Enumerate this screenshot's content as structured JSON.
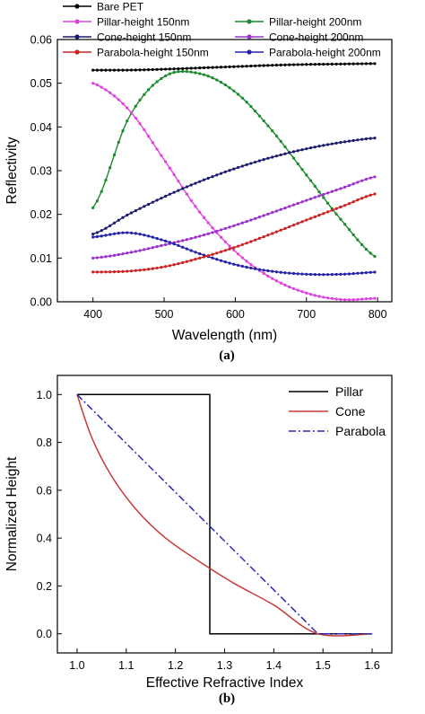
{
  "chart_data": [
    {
      "type": "line",
      "panel_label": "(a)",
      "xlabel": "Wavelength (nm)",
      "ylabel": "Reflectivity",
      "xlim": [
        350,
        820
      ],
      "ylim": [
        0.0,
        0.06
      ],
      "xticks": [
        400,
        500,
        600,
        700,
        800
      ],
      "xtick_labels": [
        "400",
        "500",
        "600",
        "700",
        "800"
      ],
      "yticks": [
        0.0,
        0.01,
        0.02,
        0.03,
        0.04,
        0.05,
        0.06
      ],
      "ytick_labels": [
        "0.00",
        "0.01",
        "0.02",
        "0.03",
        "0.04",
        "0.05",
        "0.06"
      ],
      "grid": false,
      "legend_position": "top, outside plot, two columns",
      "x": [
        400,
        450,
        500,
        550,
        600,
        650,
        700,
        750,
        800
      ],
      "series": [
        {
          "name": "Bare PET",
          "color": "#000000",
          "marker": "circle",
          "values": [
            0.053,
            0.053,
            0.0532,
            0.0535,
            0.0538,
            0.0541,
            0.0543,
            0.0544,
            0.0545
          ]
        },
        {
          "name": "Pillar-height 200nm",
          "color": "#1a8a2a",
          "marker": "circle",
          "values": [
            0.0215,
            0.042,
            0.0515,
            0.0522,
            0.048,
            0.0395,
            0.029,
            0.0185,
            0.01
          ]
        },
        {
          "name": "Pillar-height 150nm",
          "color": "#e040e0",
          "marker": "circle",
          "values": [
            0.05,
            0.044,
            0.0325,
            0.0205,
            0.0115,
            0.0055,
            0.002,
            0.0005,
            0.0008
          ]
        },
        {
          "name": "Cone-height 200nm",
          "color": "#9933cc",
          "marker": "circle",
          "values": [
            0.01,
            0.0112,
            0.013,
            0.015,
            0.0175,
            0.0203,
            0.0232,
            0.026,
            0.0287
          ]
        },
        {
          "name": "Cone-height 150nm",
          "color": "#1a1a6e",
          "marker": "circle",
          "values": [
            0.0155,
            0.02,
            0.024,
            0.0275,
            0.0305,
            0.033,
            0.035,
            0.0365,
            0.0375
          ]
        },
        {
          "name": "Parabola-height 200nm",
          "color": "#2222aa",
          "marker": "circle",
          "values": [
            0.0148,
            0.0158,
            0.014,
            0.011,
            0.0085,
            0.007,
            0.0063,
            0.0063,
            0.0068
          ]
        },
        {
          "name": "Parabola-height 150nm",
          "color": "#cc2222",
          "marker": "circle",
          "values": [
            0.0068,
            0.007,
            0.008,
            0.01,
            0.0125,
            0.0155,
            0.0187,
            0.0218,
            0.0248
          ]
        }
      ]
    },
    {
      "type": "line",
      "panel_label": "(b)",
      "xlabel": "Effective Refractive Index",
      "ylabel": "Normalized Height",
      "xlim": [
        0.96,
        1.64
      ],
      "ylim": [
        -0.08,
        1.08
      ],
      "xticks": [
        1.0,
        1.1,
        1.2,
        1.3,
        1.4,
        1.5,
        1.6
      ],
      "xtick_labels": [
        "1.0",
        "1.1",
        "1.2",
        "1.3",
        "1.4",
        "1.5",
        "1.6"
      ],
      "yticks": [
        0.0,
        0.2,
        0.4,
        0.6,
        0.8,
        1.0
      ],
      "ytick_labels": [
        "0.0",
        "0.2",
        "0.4",
        "0.6",
        "0.8",
        "1.0"
      ],
      "grid": false,
      "legend_position": "top-right",
      "series": [
        {
          "name": "Pillar",
          "color": "#000000",
          "dash": "solid",
          "x": [
            1.0,
            1.27,
            1.27,
            1.6
          ],
          "y": [
            1.0,
            1.0,
            0.0,
            0.0
          ]
        },
        {
          "name": "Cone",
          "color": "#c83a3a",
          "dash": "solid",
          "x": [
            1.0,
            1.03,
            1.07,
            1.12,
            1.18,
            1.25,
            1.32,
            1.4,
            1.49,
            1.6
          ],
          "y": [
            1.0,
            0.82,
            0.66,
            0.52,
            0.4,
            0.3,
            0.21,
            0.12,
            0.0,
            0.0
          ]
        },
        {
          "name": "Parabola",
          "color": "#2a2ab8",
          "dash": "dashdot",
          "x": [
            1.0,
            1.49,
            1.6
          ],
          "y": [
            1.0,
            0.0,
            0.0
          ]
        }
      ]
    }
  ]
}
